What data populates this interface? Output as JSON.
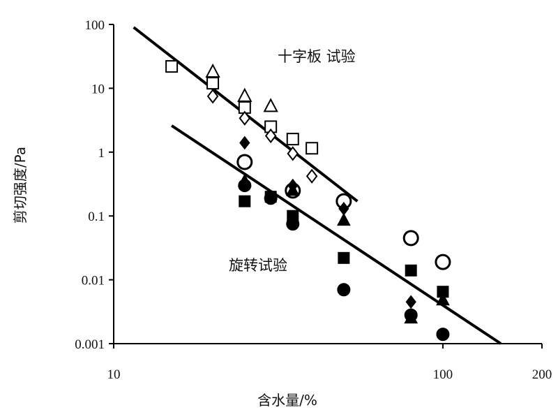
{
  "chart_data": {
    "type": "scatter",
    "x_scale": "log",
    "y_scale": "log",
    "xlabel": "含水量/%",
    "ylabel": "剪切强度/Pa",
    "xlim": [
      10,
      200
    ],
    "ylim": [
      0.001,
      100
    ],
    "x_ticks": [
      "10",
      "100",
      "200"
    ],
    "y_ticks": [
      "100",
      "10",
      "1",
      "0.1",
      "0.01",
      "0.001"
    ],
    "grid": false,
    "annotations": [
      "十字板 试验",
      "旋转试验"
    ],
    "series": [
      {
        "marker": "open-square",
        "x": [
          15,
          20,
          25,
          30,
          35,
          40
        ],
        "y": [
          22,
          12,
          5,
          2.5,
          1.6,
          1.15
        ]
      },
      {
        "marker": "open-triangle",
        "x": [
          20,
          25,
          30
        ],
        "y": [
          18,
          7.5,
          5.2
        ]
      },
      {
        "marker": "open-diamond",
        "x": [
          20,
          25,
          30,
          35,
          40
        ],
        "y": [
          7.5,
          3.4,
          1.8,
          0.95,
          0.42
        ]
      },
      {
        "marker": "open-circle",
        "x": [
          25,
          35,
          50,
          80,
          100
        ],
        "y": [
          0.7,
          0.25,
          0.17,
          0.045,
          0.019
        ]
      },
      {
        "marker": "filled-diamond",
        "x": [
          25,
          35,
          50,
          80
        ],
        "y": [
          1.4,
          0.3,
          0.13,
          0.0045
        ]
      },
      {
        "marker": "filled-triangle",
        "x": [
          25,
          35,
          50,
          80,
          100
        ],
        "y": [
          0.35,
          0.25,
          0.085,
          0.0025,
          0.0048
        ]
      },
      {
        "marker": "filled-circle",
        "x": [
          25,
          30,
          35,
          50,
          80,
          100
        ],
        "y": [
          0.3,
          0.19,
          0.075,
          0.007,
          0.0028,
          0.0014
        ]
      },
      {
        "marker": "filled-square",
        "x": [
          25,
          30,
          35,
          50,
          80,
          100
        ],
        "y": [
          0.17,
          0.2,
          0.1,
          0.022,
          0.014,
          0.0065
        ]
      }
    ],
    "trendlines": [
      {
        "x": [
          11.5,
          55
        ],
        "y": [
          90,
          0.17
        ]
      },
      {
        "x": [
          15,
          150
        ],
        "y": [
          2.6,
          0.001
        ]
      }
    ]
  }
}
